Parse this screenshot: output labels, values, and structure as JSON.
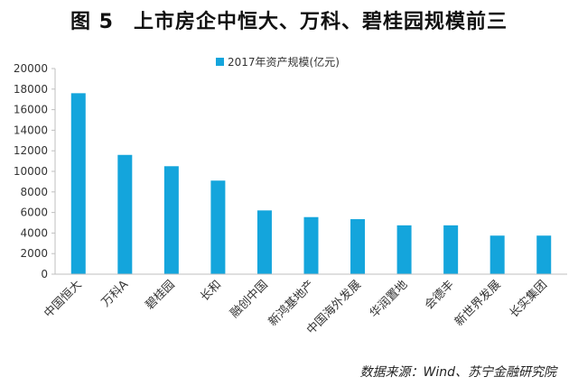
{
  "figure": {
    "label": "图 5",
    "title": "上市房企中恒大、万科、碧桂园规模前三",
    "source": "数据来源：Wind、苏宁金融研究院"
  },
  "colors": {
    "bar": "#14a5dc",
    "axis": "#bfbfbf",
    "text": "#333333"
  },
  "chart_data": {
    "type": "bar",
    "categories": [
      "中国恒大",
      "万科A",
      "碧桂园",
      "长和",
      "融创中国",
      "新鸿基地产",
      "中国海外发展",
      "华润置地",
      "会德丰",
      "新世界发展",
      "长实集团"
    ],
    "series": [
      {
        "name": "2017年资产规模(亿元)",
        "values": [
          17600,
          11600,
          10500,
          9100,
          6200,
          5550,
          5350,
          4750,
          4750,
          3750,
          3750
        ]
      }
    ],
    "ylim": [
      0,
      20000
    ],
    "yticks": [
      "0",
      "2000",
      "4000",
      "6000",
      "8000",
      "10000",
      "12000",
      "14000",
      "16000",
      "18000",
      "20000"
    ],
    "grid": false,
    "legend": "top-center"
  }
}
